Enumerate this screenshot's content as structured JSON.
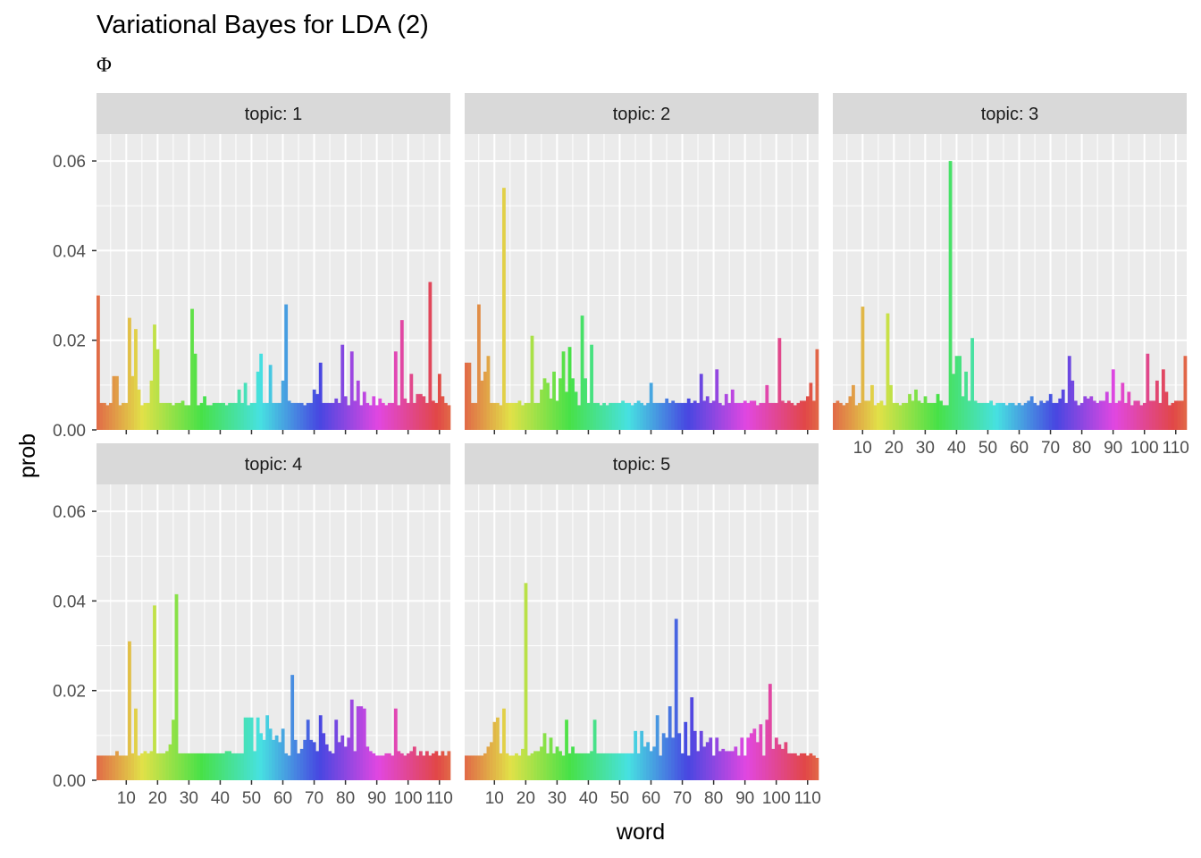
{
  "chart_data": {
    "type": "bar",
    "title": "Variational Bayes for LDA (2)",
    "subtitle": "Φ",
    "xlabel": "word",
    "ylabel": "prob",
    "ylim": [
      0,
      0.066
    ],
    "xlim": [
      0.5,
      113.5
    ],
    "x_ticks": [
      10,
      20,
      30,
      40,
      50,
      60,
      70,
      80,
      90,
      100,
      110
    ],
    "y_ticks": [
      0.0,
      0.02,
      0.04,
      0.06
    ],
    "y_tick_labels": [
      "0.00",
      "0.02",
      "0.04",
      "0.06"
    ],
    "grid": true,
    "facets": [
      "topic: 1",
      "topic: 2",
      "topic: 3",
      "topic: 4",
      "topic: 5"
    ],
    "n_words": 113,
    "fill_by": "word (hue gradient)",
    "series": [
      {
        "name": "topic: 1",
        "values": [
          0.03,
          0.006,
          0.006,
          0.0055,
          0.006,
          0.012,
          0.012,
          0.0055,
          0.006,
          0.006,
          0.025,
          0.012,
          0.0225,
          0.009,
          0.0055,
          0.006,
          0.006,
          0.011,
          0.0235,
          0.018,
          0.006,
          0.006,
          0.006,
          0.006,
          0.0055,
          0.006,
          0.006,
          0.0065,
          0.0055,
          0.0055,
          0.027,
          0.017,
          0.0055,
          0.006,
          0.0075,
          0.0055,
          0.0055,
          0.006,
          0.006,
          0.006,
          0.006,
          0.0055,
          0.006,
          0.006,
          0.006,
          0.009,
          0.006,
          0.0105,
          0.0055,
          0.006,
          0.006,
          0.013,
          0.017,
          0.006,
          0.006,
          0.0145,
          0.006,
          0.006,
          0.006,
          0.011,
          0.028,
          0.0065,
          0.006,
          0.006,
          0.006,
          0.006,
          0.0055,
          0.006,
          0.006,
          0.009,
          0.008,
          0.015,
          0.006,
          0.006,
          0.006,
          0.006,
          0.007,
          0.006,
          0.019,
          0.0075,
          0.0055,
          0.0175,
          0.0065,
          0.011,
          0.0055,
          0.0085,
          0.006,
          0.0055,
          0.0075,
          0.0055,
          0.007,
          0.006,
          0.0055,
          0.006,
          0.006,
          0.0175,
          0.0055,
          0.0245,
          0.007,
          0.006,
          0.0125,
          0.006,
          0.008,
          0.008,
          0.0075,
          0.006,
          0.033,
          0.0065,
          0.006,
          0.0125,
          0.0075,
          0.006,
          0.0055
        ]
      },
      {
        "name": "topic: 2",
        "values": [
          0.015,
          0.015,
          0.006,
          0.006,
          0.028,
          0.011,
          0.013,
          0.0165,
          0.006,
          0.006,
          0.006,
          0.0055,
          0.054,
          0.006,
          0.006,
          0.006,
          0.006,
          0.0065,
          0.0055,
          0.006,
          0.006,
          0.021,
          0.006,
          0.006,
          0.009,
          0.0115,
          0.0105,
          0.007,
          0.013,
          0.0065,
          0.0115,
          0.0175,
          0.0085,
          0.0185,
          0.0115,
          0.0085,
          0.0055,
          0.0255,
          0.0115,
          0.006,
          0.019,
          0.006,
          0.006,
          0.0055,
          0.006,
          0.0055,
          0.006,
          0.006,
          0.006,
          0.006,
          0.0065,
          0.006,
          0.006,
          0.0055,
          0.006,
          0.0065,
          0.006,
          0.0055,
          0.006,
          0.0105,
          0.006,
          0.006,
          0.006,
          0.006,
          0.007,
          0.006,
          0.0065,
          0.006,
          0.006,
          0.006,
          0.006,
          0.007,
          0.006,
          0.0065,
          0.006,
          0.0125,
          0.0065,
          0.0075,
          0.006,
          0.0065,
          0.0135,
          0.006,
          0.0055,
          0.008,
          0.006,
          0.009,
          0.006,
          0.006,
          0.006,
          0.0065,
          0.006,
          0.0065,
          0.0065,
          0.0055,
          0.006,
          0.006,
          0.01,
          0.006,
          0.006,
          0.006,
          0.0205,
          0.0065,
          0.006,
          0.0065,
          0.006,
          0.0055,
          0.006,
          0.0065,
          0.0065,
          0.0075,
          0.0105,
          0.0065,
          0.018
        ]
      },
      {
        "name": "topic: 3",
        "values": [
          0.006,
          0.0065,
          0.006,
          0.0055,
          0.006,
          0.0075,
          0.01,
          0.0055,
          0.006,
          0.0275,
          0.0065,
          0.0065,
          0.01,
          0.0055,
          0.006,
          0.0065,
          0.0055,
          0.026,
          0.01,
          0.006,
          0.006,
          0.0055,
          0.006,
          0.006,
          0.008,
          0.0065,
          0.009,
          0.0065,
          0.006,
          0.0075,
          0.006,
          0.006,
          0.006,
          0.008,
          0.0065,
          0.0055,
          0.0055,
          0.06,
          0.0125,
          0.0165,
          0.0165,
          0.0075,
          0.013,
          0.0065,
          0.0205,
          0.0065,
          0.006,
          0.006,
          0.006,
          0.006,
          0.0065,
          0.0055,
          0.006,
          0.006,
          0.006,
          0.0055,
          0.006,
          0.006,
          0.0055,
          0.006,
          0.0055,
          0.006,
          0.0065,
          0.0075,
          0.006,
          0.0055,
          0.0065,
          0.006,
          0.0065,
          0.008,
          0.006,
          0.006,
          0.007,
          0.009,
          0.006,
          0.0165,
          0.011,
          0.0065,
          0.0055,
          0.006,
          0.0075,
          0.007,
          0.0075,
          0.0065,
          0.006,
          0.0065,
          0.0065,
          0.0085,
          0.006,
          0.0135,
          0.006,
          0.0065,
          0.0105,
          0.006,
          0.0085,
          0.0055,
          0.0065,
          0.0065,
          0.0055,
          0.006,
          0.017,
          0.0065,
          0.0065,
          0.011,
          0.006,
          0.0135,
          0.0085,
          0.0055,
          0.006,
          0.0065,
          0.0065,
          0.0065,
          0.0165
        ]
      },
      {
        "name": "topic: 4",
        "values": [
          0.0055,
          0.0055,
          0.0055,
          0.0055,
          0.0055,
          0.0055,
          0.0065,
          0.0055,
          0.0055,
          0.0055,
          0.031,
          0.006,
          0.016,
          0.0055,
          0.006,
          0.0065,
          0.006,
          0.0065,
          0.039,
          0.006,
          0.006,
          0.006,
          0.0065,
          0.008,
          0.0135,
          0.0415,
          0.006,
          0.006,
          0.006,
          0.006,
          0.006,
          0.006,
          0.006,
          0.006,
          0.006,
          0.006,
          0.006,
          0.006,
          0.006,
          0.006,
          0.006,
          0.0065,
          0.0065,
          0.006,
          0.006,
          0.006,
          0.006,
          0.014,
          0.014,
          0.014,
          0.0065,
          0.014,
          0.0105,
          0.009,
          0.0145,
          0.0115,
          0.009,
          0.01,
          0.0085,
          0.0115,
          0.006,
          0.0055,
          0.0235,
          0.009,
          0.006,
          0.007,
          0.009,
          0.0135,
          0.009,
          0.0085,
          0.0065,
          0.0145,
          0.0105,
          0.008,
          0.0065,
          0.006,
          0.0135,
          0.0085,
          0.01,
          0.0075,
          0.0095,
          0.018,
          0.0065,
          0.0165,
          0.0165,
          0.016,
          0.0075,
          0.0065,
          0.006,
          0.0055,
          0.0055,
          0.0055,
          0.006,
          0.006,
          0.0055,
          0.016,
          0.0065,
          0.006,
          0.0055,
          0.006,
          0.0065,
          0.0075,
          0.0055,
          0.0065,
          0.0055,
          0.0065,
          0.0055,
          0.006,
          0.0065,
          0.0055,
          0.0065,
          0.0055,
          0.0065
        ]
      },
      {
        "name": "topic: 5",
        "values": [
          0.0055,
          0.0055,
          0.0055,
          0.0055,
          0.0055,
          0.0055,
          0.006,
          0.0075,
          0.0085,
          0.013,
          0.014,
          0.006,
          0.016,
          0.006,
          0.0055,
          0.0055,
          0.006,
          0.0055,
          0.007,
          0.044,
          0.0055,
          0.006,
          0.0065,
          0.0065,
          0.0075,
          0.0105,
          0.006,
          0.0095,
          0.006,
          0.0075,
          0.0065,
          0.0055,
          0.0135,
          0.006,
          0.0075,
          0.006,
          0.006,
          0.006,
          0.006,
          0.006,
          0.0065,
          0.0135,
          0.006,
          0.006,
          0.006,
          0.006,
          0.006,
          0.006,
          0.006,
          0.006,
          0.006,
          0.006,
          0.006,
          0.006,
          0.011,
          0.006,
          0.011,
          0.0075,
          0.0085,
          0.0065,
          0.0075,
          0.0145,
          0.0055,
          0.0105,
          0.0095,
          0.0165,
          0.0095,
          0.036,
          0.0105,
          0.006,
          0.013,
          0.0055,
          0.0185,
          0.011,
          0.0065,
          0.011,
          0.0075,
          0.0085,
          0.0095,
          0.0055,
          0.0095,
          0.0065,
          0.007,
          0.0065,
          0.0065,
          0.0065,
          0.0075,
          0.0055,
          0.0095,
          0.0055,
          0.0095,
          0.0105,
          0.0115,
          0.0085,
          0.0125,
          0.0055,
          0.0135,
          0.0215,
          0.007,
          0.0095,
          0.008,
          0.007,
          0.0085,
          0.006,
          0.006,
          0.006,
          0.0055,
          0.006,
          0.006,
          0.0055,
          0.006,
          0.0055,
          0.005
        ]
      }
    ]
  }
}
